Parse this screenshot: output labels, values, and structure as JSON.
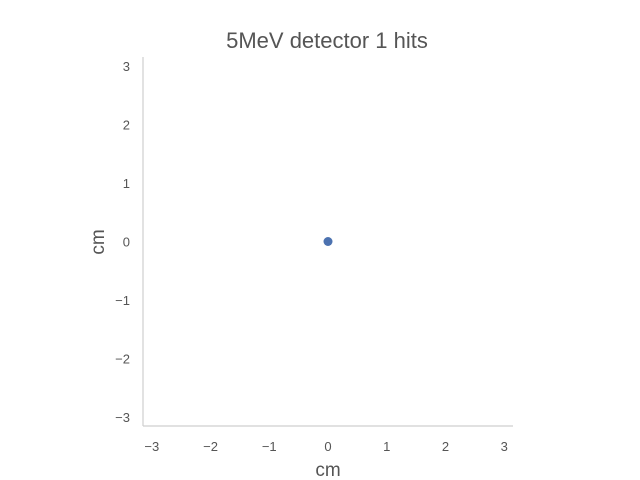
{
  "chart_data": {
    "type": "scatter",
    "title": "5MeV detector 1 hits",
    "xlabel": "cm",
    "ylabel": "cm",
    "xlim": [
      -3.15,
      3.15
    ],
    "ylim": [
      -3.15,
      3.15
    ],
    "xticks": [
      -3,
      -2,
      -1,
      0,
      1,
      2,
      3
    ],
    "yticks": [
      -3,
      -2,
      -1,
      0,
      1,
      2,
      3
    ],
    "xtick_labels": [
      "−3",
      "−2",
      "−1",
      "0",
      "1",
      "2",
      "3"
    ],
    "ytick_labels": [
      "−3",
      "−2",
      "−1",
      "0",
      "1",
      "2",
      "3"
    ],
    "grid": false,
    "series": [
      {
        "points": [
          {
            "x": 0,
            "y": 0
          }
        ],
        "color": "#4c72b0"
      }
    ]
  }
}
